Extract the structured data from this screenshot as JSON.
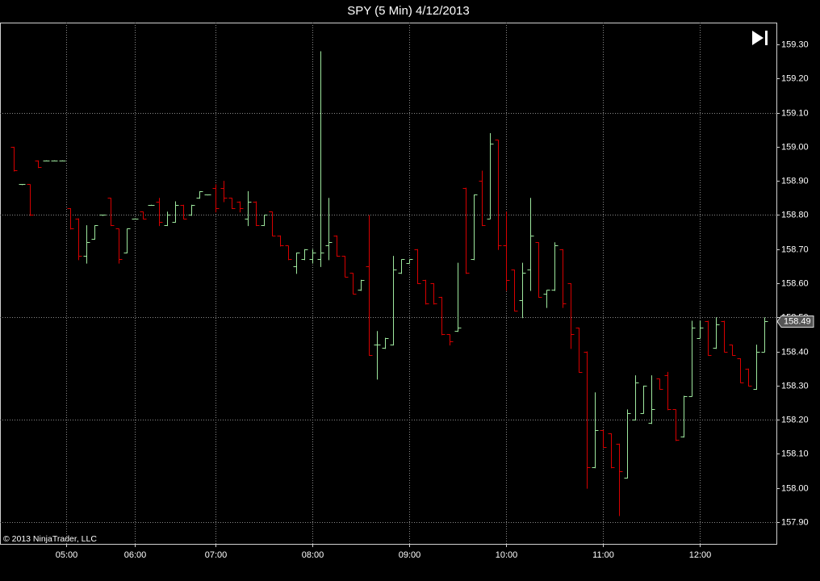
{
  "chart_data": {
    "type": "ohlc",
    "title": "SPY (5 Min)  4/12/2013",
    "copyright": "© 2013 NinjaTrader, LLC",
    "up_color": "#9ee89e",
    "down_color": "#d80000",
    "open": [
      159.0,
      158.89,
      158.89,
      158.96,
      158.96,
      158.96,
      158.96,
      158.82,
      158.79,
      158.68,
      158.73,
      158.8,
      158.85,
      158.76,
      158.69,
      158.79,
      158.81,
      158.83,
      158.84,
      158.77,
      158.78,
      158.83,
      158.8,
      158.85,
      158.86,
      158.88,
      158.88,
      158.85,
      158.84,
      158.79,
      158.84,
      158.77,
      158.81,
      158.74,
      158.71,
      158.65,
      158.67,
      158.67,
      158.67,
      158.71,
      158.74,
      158.68,
      158.63,
      158.58,
      158.65,
      158.42,
      158.41,
      158.42,
      158.63,
      158.66,
      158.7,
      158.61,
      158.6,
      158.56,
      158.45,
      158.46,
      158.88,
      158.67,
      158.9,
      158.79,
      159.02,
      158.71,
      158.64,
      158.55,
      158.64,
      158.72,
      158.57,
      158.58,
      158.7,
      158.6,
      158.47,
      158.4,
      158.06,
      158.17,
      158.16,
      158.13,
      158.03,
      158.2,
      158.22,
      158.19,
      158.32,
      158.33,
      158.23,
      158.15,
      158.27,
      158.44,
      158.49,
      158.41,
      158.49,
      158.42,
      158.38,
      158.35,
      158.29,
      158.4
    ],
    "high": [
      159.0,
      158.89,
      158.89,
      158.96,
      158.96,
      158.96,
      158.96,
      158.82,
      158.79,
      158.77,
      158.77,
      158.8,
      158.85,
      158.76,
      158.76,
      158.79,
      158.81,
      158.83,
      158.85,
      158.81,
      158.84,
      158.83,
      158.83,
      158.87,
      158.86,
      158.89,
      158.9,
      158.85,
      158.84,
      158.87,
      158.84,
      158.8,
      158.81,
      158.74,
      158.71,
      158.69,
      158.7,
      158.7,
      159.28,
      158.85,
      158.74,
      158.68,
      158.63,
      158.61,
      158.8,
      158.46,
      158.44,
      158.68,
      158.67,
      158.67,
      158.7,
      158.61,
      158.6,
      158.56,
      158.45,
      158.66,
      158.88,
      158.86,
      158.93,
      159.04,
      159.02,
      158.81,
      158.64,
      158.66,
      158.85,
      158.72,
      158.58,
      158.72,
      158.7,
      158.6,
      158.47,
      158.4,
      158.28,
      158.17,
      158.16,
      158.13,
      158.23,
      158.33,
      158.3,
      158.33,
      158.32,
      158.34,
      158.23,
      158.27,
      158.49,
      158.49,
      158.49,
      158.5,
      158.49,
      158.42,
      158.38,
      158.35,
      158.42,
      158.5
    ],
    "low": [
      158.93,
      158.89,
      158.8,
      158.94,
      158.96,
      158.96,
      158.96,
      158.76,
      158.67,
      158.66,
      158.73,
      158.8,
      158.77,
      158.66,
      158.69,
      158.79,
      158.79,
      158.83,
      158.77,
      158.77,
      158.78,
      158.79,
      158.8,
      158.85,
      158.86,
      158.81,
      158.84,
      158.82,
      158.81,
      158.77,
      158.77,
      158.77,
      158.74,
      158.71,
      158.67,
      158.63,
      158.67,
      158.66,
      158.65,
      158.67,
      158.68,
      158.62,
      158.57,
      158.58,
      158.39,
      158.32,
      158.41,
      158.42,
      158.63,
      158.66,
      158.6,
      158.54,
      158.54,
      158.45,
      158.42,
      158.46,
      158.63,
      158.67,
      158.77,
      158.79,
      158.7,
      158.58,
      158.52,
      158.5,
      158.58,
      158.56,
      158.53,
      158.58,
      158.53,
      158.41,
      158.34,
      158.0,
      158.06,
      158.12,
      158.06,
      157.92,
      158.03,
      158.2,
      158.22,
      158.19,
      158.29,
      158.23,
      158.14,
      158.15,
      158.27,
      158.44,
      158.39,
      158.41,
      158.4,
      158.39,
      158.31,
      158.3,
      158.29,
      158.4
    ],
    "close": [
      158.93,
      158.89,
      158.8,
      158.94,
      158.96,
      158.96,
      158.96,
      158.76,
      158.68,
      158.72,
      158.77,
      158.8,
      158.77,
      158.67,
      158.76,
      158.79,
      158.79,
      158.83,
      158.78,
      158.8,
      158.83,
      158.79,
      158.83,
      158.87,
      158.86,
      158.82,
      158.85,
      158.82,
      158.82,
      158.84,
      158.77,
      158.8,
      158.74,
      158.71,
      158.67,
      158.69,
      158.7,
      158.69,
      158.69,
      158.72,
      158.68,
      158.62,
      158.57,
      158.61,
      158.39,
      158.42,
      158.44,
      158.64,
      158.67,
      158.67,
      158.6,
      158.54,
      158.54,
      158.45,
      158.43,
      158.47,
      158.63,
      158.86,
      158.77,
      159.01,
      158.71,
      158.61,
      158.52,
      158.63,
      158.74,
      158.56,
      158.58,
      158.71,
      158.54,
      158.45,
      158.34,
      158.06,
      158.17,
      158.12,
      158.06,
      158.05,
      158.22,
      158.31,
      158.3,
      158.23,
      158.29,
      158.23,
      158.14,
      158.27,
      158.47,
      158.47,
      158.39,
      158.48,
      158.4,
      158.39,
      158.31,
      158.3,
      158.4,
      158.49
    ],
    "xlim": [
      -1.7,
      94.5
    ],
    "xticks": [
      {
        "value": 6.5,
        "label": "05:00"
      },
      {
        "value": 15,
        "label": "06:00"
      },
      {
        "value": 25,
        "label": "07:00"
      },
      {
        "value": 37,
        "label": "08:00"
      },
      {
        "value": 49,
        "label": "09:00"
      },
      {
        "value": 61,
        "label": "10:00"
      },
      {
        "value": 73,
        "label": "11:00"
      },
      {
        "value": 85,
        "label": "12:00"
      }
    ],
    "ylim": [
      157.836,
      159.364
    ],
    "yticks": [
      {
        "value": 159.3,
        "label": "159.30"
      },
      {
        "value": 159.2,
        "label": "159.20"
      },
      {
        "value": 159.1,
        "label": "159.10"
      },
      {
        "value": 159.0,
        "label": "159.00"
      },
      {
        "value": 158.9,
        "label": "158.90"
      },
      {
        "value": 158.8,
        "label": "158.80"
      },
      {
        "value": 158.7,
        "label": "158.70"
      },
      {
        "value": 158.6,
        "label": "158.60"
      },
      {
        "value": 158.5,
        "label": "158.50"
      },
      {
        "value": 158.4,
        "label": "158.40"
      },
      {
        "value": 158.3,
        "label": "158.30"
      },
      {
        "value": 158.2,
        "label": "158.20"
      },
      {
        "value": 158.1,
        "label": "158.10"
      },
      {
        "value": 158.0,
        "label": "158.00"
      },
      {
        "value": 157.9,
        "label": "157.90"
      }
    ],
    "ygrid": [
      159.1,
      158.8,
      158.5,
      158.2,
      157.9
    ]
  }
}
